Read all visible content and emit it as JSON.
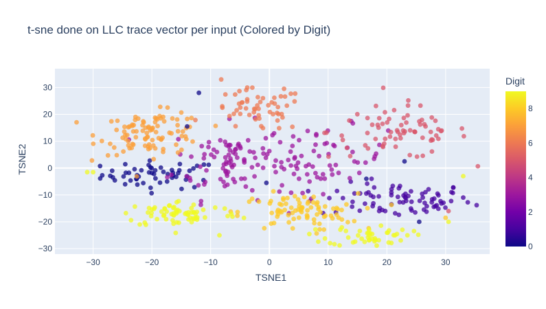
{
  "chart_data": {
    "type": "scatter",
    "title": "t-sne done on LLC trace vector per input (Colored by Digit)",
    "xlabel": "TSNE1",
    "ylabel": "TSNE2",
    "xlim": [
      -36.5,
      37.5
    ],
    "ylim": [
      -32,
      37
    ],
    "xticks": [
      -30,
      -20,
      -10,
      0,
      10,
      20,
      30
    ],
    "yticks": [
      -30,
      -20,
      -10,
      0,
      10,
      20,
      30
    ],
    "grid": true,
    "colorscale": "plasma",
    "colorbar": {
      "title": "Digit",
      "range": [
        0,
        9
      ],
      "ticks": [
        0,
        2,
        4,
        6,
        8
      ]
    },
    "clusters": [
      {
        "digit": 0,
        "count": 55,
        "center": [
          -18.5,
          -2.5
        ],
        "spread": [
          5.0,
          2.6
        ]
      },
      {
        "digit": 1,
        "count": 80,
        "center": [
          21.5,
          -12.0
        ],
        "spread": [
          6.5,
          3.2
        ]
      },
      {
        "digit": 3,
        "count": 95,
        "center": [
          -6.5,
          2.5
        ],
        "spread": [
          5.0,
          7.0
        ]
      },
      {
        "digit": 3,
        "count": 65,
        "center": [
          9.0,
          3.5
        ],
        "spread": [
          5.5,
          6.0
        ]
      },
      {
        "digit": 5,
        "count": 75,
        "center": [
          22.0,
          13.5
        ],
        "spread": [
          6.0,
          5.0
        ]
      },
      {
        "digit": 6,
        "count": 55,
        "center": [
          -2.0,
          21.5
        ],
        "spread": [
          4.0,
          4.0
        ]
      },
      {
        "digit": 7,
        "count": 100,
        "center": [
          -20.0,
          13.0
        ],
        "spread": [
          4.5,
          4.0
        ]
      },
      {
        "digit": 8,
        "count": 85,
        "center": [
          5.0,
          -16.5
        ],
        "spread": [
          5.0,
          3.5
        ]
      },
      {
        "digit": 9,
        "count": 70,
        "center": [
          -15.0,
          -17.0
        ],
        "spread": [
          5.0,
          2.5
        ]
      },
      {
        "digit": 9,
        "count": 45,
        "center": [
          17.0,
          -25.0
        ],
        "spread": [
          3.5,
          2.0
        ]
      }
    ],
    "points": [
      {
        "x": -8.2,
        "y": 33,
        "digit": 6
      },
      {
        "x": -12,
        "y": 28,
        "digit": 0
      },
      {
        "x": 2.5,
        "y": 29.5,
        "digit": 6
      },
      {
        "x": -14,
        "y": 15.5,
        "digit": 0
      },
      {
        "x": -31,
        "y": -1.5,
        "digit": 9
      },
      {
        "x": -30,
        "y": -1.5,
        "digit": 9
      },
      {
        "x": 23.5,
        "y": -25,
        "digit": 9
      },
      {
        "x": -8.5,
        "y": -25,
        "digit": 9
      },
      {
        "x": -0.5,
        "y": -5.5,
        "digit": 0
      },
      {
        "x": 16.5,
        "y": -4,
        "digit": 0
      },
      {
        "x": 23,
        "y": 2.5,
        "digit": 0
      },
      {
        "x": 30.5,
        "y": -16,
        "digit": 5
      },
      {
        "x": 30,
        "y": -18.5,
        "digit": 8
      },
      {
        "x": 30.5,
        "y": -20,
        "digit": 9
      },
      {
        "x": 25.5,
        "y": -20,
        "digit": 0
      },
      {
        "x": 33,
        "y": -3,
        "digit": 9
      }
    ]
  }
}
